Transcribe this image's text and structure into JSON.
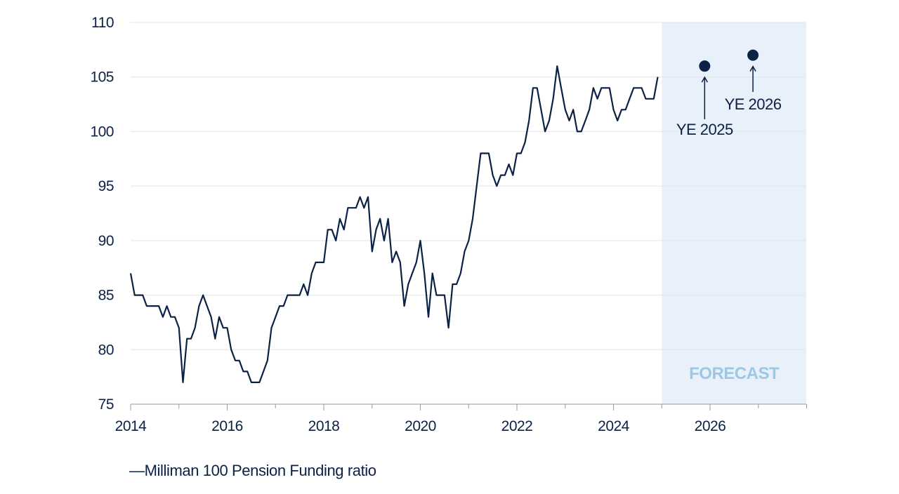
{
  "chart_data": {
    "type": "line",
    "title": "",
    "xlabel": "",
    "ylabel": "",
    "xlim": [
      2014,
      2028
    ],
    "ylim": [
      75,
      110
    ],
    "yticks": [
      75,
      80,
      85,
      90,
      95,
      100,
      105,
      110
    ],
    "xticks": [
      2014,
      2016,
      2018,
      2020,
      2022,
      2024,
      2026
    ],
    "grid": "horizontal",
    "forecast_region": {
      "start": 2025.0,
      "end": 2028.0,
      "label": "FORECAST",
      "fill_color": "#e8f0f9",
      "label_color": "#9cc8e6"
    },
    "series": [
      {
        "name": "Milliman 100 Pension Funding ratio",
        "color": "#0b2145",
        "x": [
          2014.0,
          2014.083,
          2014.167,
          2014.25,
          2014.333,
          2014.417,
          2014.5,
          2014.583,
          2014.667,
          2014.75,
          2014.833,
          2014.917,
          2015.0,
          2015.083,
          2015.167,
          2015.25,
          2015.333,
          2015.417,
          2015.5,
          2015.583,
          2015.667,
          2015.75,
          2015.833,
          2015.917,
          2016.0,
          2016.083,
          2016.167,
          2016.25,
          2016.333,
          2016.417,
          2016.5,
          2016.583,
          2016.667,
          2016.75,
          2016.833,
          2016.917,
          2017.0,
          2017.083,
          2017.167,
          2017.25,
          2017.333,
          2017.417,
          2017.5,
          2017.583,
          2017.667,
          2017.75,
          2017.833,
          2017.917,
          2018.0,
          2018.083,
          2018.167,
          2018.25,
          2018.333,
          2018.417,
          2018.5,
          2018.583,
          2018.667,
          2018.75,
          2018.833,
          2018.917,
          2019.0,
          2019.083,
          2019.167,
          2019.25,
          2019.333,
          2019.417,
          2019.5,
          2019.583,
          2019.667,
          2019.75,
          2019.833,
          2019.917,
          2020.0,
          2020.083,
          2020.167,
          2020.25,
          2020.333,
          2020.417,
          2020.5,
          2020.583,
          2020.667,
          2020.75,
          2020.833,
          2020.917,
          2021.0,
          2021.083,
          2021.167,
          2021.25,
          2021.333,
          2021.417,
          2021.5,
          2021.583,
          2021.667,
          2021.75,
          2021.833,
          2021.917,
          2022.0,
          2022.083,
          2022.167,
          2022.25,
          2022.333,
          2022.417,
          2022.5,
          2022.583,
          2022.667,
          2022.75,
          2022.833,
          2022.917,
          2023.0,
          2023.083,
          2023.167,
          2023.25,
          2023.333,
          2023.417,
          2023.5,
          2023.583,
          2023.667,
          2023.75,
          2023.833,
          2023.917,
          2024.0,
          2024.083,
          2024.167,
          2024.25,
          2024.333,
          2024.417,
          2024.5,
          2024.583,
          2024.667,
          2024.75,
          2024.833,
          2024.917
        ],
        "y": [
          87,
          85,
          85,
          85,
          84,
          84,
          84,
          84,
          83,
          84,
          83,
          83,
          82,
          77,
          81,
          81,
          82,
          84,
          85,
          84,
          83,
          81,
          83,
          82,
          82,
          80,
          79,
          79,
          78,
          78,
          77,
          77,
          77,
          78,
          79,
          82,
          83,
          84,
          84,
          85,
          85,
          85,
          85,
          86,
          85,
          87,
          88,
          88,
          88,
          91,
          91,
          90,
          92,
          91,
          93,
          93,
          93,
          94,
          93,
          94,
          89,
          91,
          92,
          90,
          92,
          88,
          89,
          88,
          84,
          86,
          87,
          88,
          90,
          87,
          83,
          87,
          85,
          85,
          85,
          82,
          86,
          86,
          87,
          89,
          90,
          92,
          95,
          98,
          98,
          98,
          96,
          95,
          96,
          96,
          97,
          96,
          98,
          98,
          99,
          101,
          104,
          104,
          102,
          100,
          101,
          103,
          106,
          104,
          102,
          101,
          102,
          100,
          100,
          101,
          102,
          104,
          103,
          104,
          104,
          104,
          102,
          101,
          102,
          102,
          103,
          104,
          104,
          104,
          103,
          103,
          103,
          105
        ]
      }
    ],
    "forecast_points": [
      {
        "label": "YE 2025",
        "x": 2025.917,
        "y": 106
      },
      {
        "label": "YE 2026",
        "x": 2026.917,
        "y": 107
      }
    ],
    "legend_text": "—Milliman 100 Pension Funding ratio"
  }
}
